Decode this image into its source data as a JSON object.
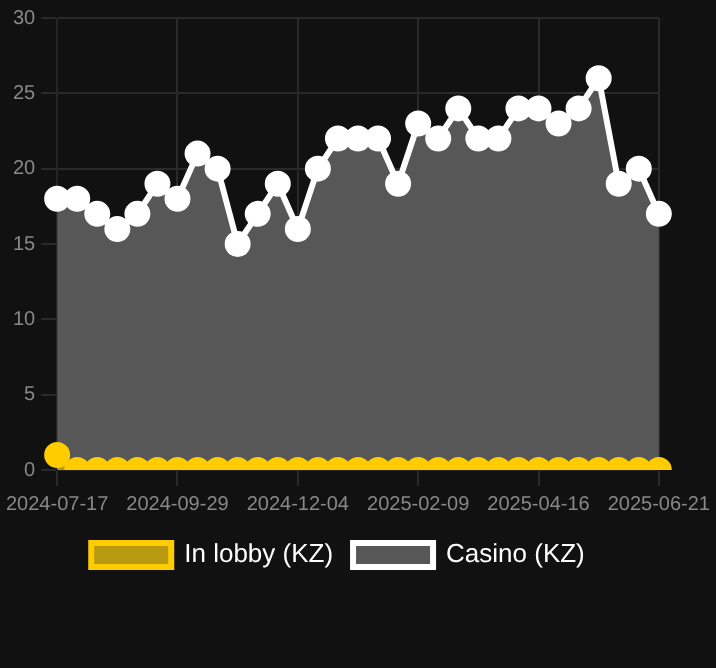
{
  "chart_data": {
    "type": "area",
    "categories": [
      "2024-07-17",
      null,
      null,
      null,
      null,
      null,
      "2024-09-29",
      null,
      null,
      null,
      null,
      null,
      "2024-12-04",
      null,
      null,
      null,
      null,
      null,
      "2025-02-09",
      null,
      null,
      null,
      null,
      null,
      "2025-04-16",
      null,
      null,
      null,
      null,
      null,
      "2025-06-21"
    ],
    "series": [
      {
        "name": "In lobby (KZ)",
        "color": "#ffcc00",
        "values": [
          1,
          0,
          0,
          0,
          0,
          0,
          0,
          0,
          0,
          0,
          0,
          0,
          0,
          0,
          0,
          0,
          0,
          0,
          0,
          0,
          0,
          0,
          0,
          0,
          0,
          0,
          0,
          0,
          0,
          0,
          0
        ]
      },
      {
        "name": "Casino (KZ)",
        "color": "#ffffff",
        "values": [
          18,
          18,
          17,
          16,
          17,
          19,
          18,
          21,
          20,
          15,
          17,
          19,
          16,
          20,
          22,
          22,
          22,
          19,
          23,
          22,
          24,
          22,
          22,
          24,
          24,
          23,
          24,
          26,
          19,
          20,
          17
        ]
      }
    ],
    "ylim": [
      0,
      30
    ],
    "yticks": [
      0,
      5,
      10,
      15,
      20,
      25,
      30
    ],
    "grid": true,
    "legend": "bottom",
    "marker": "circle"
  }
}
